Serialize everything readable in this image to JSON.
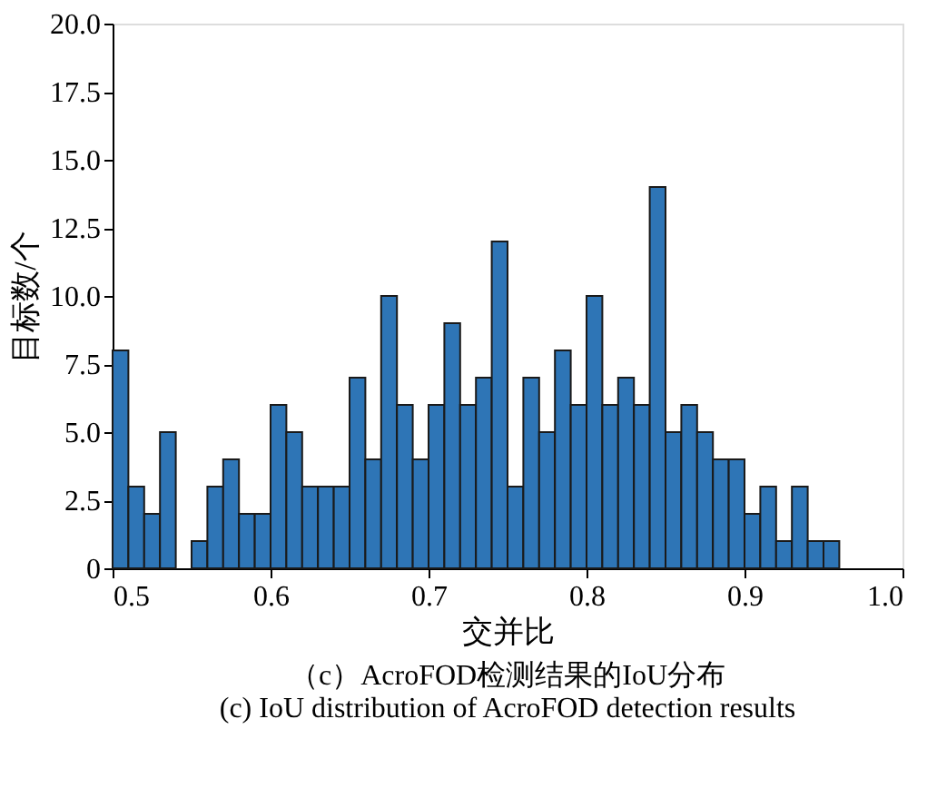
{
  "chart_data": {
    "type": "histogram",
    "xlabel": "交并比",
    "ylabel": "目标数/个",
    "annotations": [
      "（c）AcroFOD检测结果的IoU分布",
      "(c) IoU distribution of AcroFOD detection results"
    ],
    "bins": [
      0.5,
      0.51,
      0.52,
      0.53,
      0.54,
      0.55,
      0.56,
      0.57,
      0.58,
      0.59,
      0.6,
      0.61,
      0.62,
      0.63,
      0.64,
      0.65,
      0.66,
      0.67,
      0.68,
      0.69,
      0.7,
      0.71,
      0.72,
      0.73,
      0.74,
      0.75,
      0.76,
      0.77,
      0.78,
      0.79,
      0.8,
      0.81,
      0.82,
      0.83,
      0.84,
      0.85,
      0.86,
      0.87,
      0.88,
      0.89,
      0.9,
      0.91,
      0.92,
      0.93,
      0.94,
      0.95,
      0.96
    ],
    "values": [
      8,
      3,
      2,
      5,
      0,
      1,
      3,
      4,
      2,
      2,
      6,
      5,
      3,
      3,
      3,
      7,
      4,
      10,
      6,
      4,
      6,
      9,
      6,
      7,
      12,
      3,
      7,
      5,
      8,
      6,
      10,
      6,
      7,
      6,
      14,
      5,
      6,
      5,
      4,
      4,
      2,
      3,
      1,
      3,
      1,
      1
    ],
    "color": "#2e75b6",
    "xlim": [
      0.5,
      1.0
    ],
    "xticks": [
      0.5,
      0.6,
      0.7,
      0.8,
      0.9,
      {
        "value": 1,
        "label": "1.0"
      }
    ],
    "ylim": [
      0,
      20
    ],
    "yticks": [
      0,
      {
        "value": 2.5,
        "label": "2.5"
      },
      {
        "value": 5,
        "label": "5.0"
      },
      {
        "value": 7.5,
        "label": "7.5"
      },
      {
        "value": 10,
        "label": "10.0"
      },
      {
        "value": 12.5,
        "label": "12.5"
      },
      {
        "value": 15,
        "label": "15.0"
      },
      {
        "value": 17.5,
        "label": "17.5"
      },
      {
        "value": 20,
        "label": "20.0"
      }
    ],
    "grid": false
  }
}
